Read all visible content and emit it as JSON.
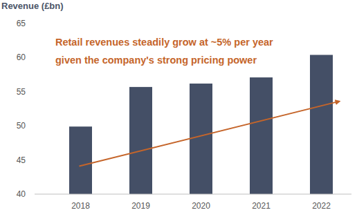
{
  "chart_data": {
    "type": "bar",
    "title": "Revenue (£bn)",
    "categories": [
      "2018",
      "2019",
      "2020",
      "2021",
      "2022"
    ],
    "values": [
      49.9,
      55.7,
      56.2,
      57.1,
      60.4
    ],
    "color": "#444f66",
    "ylim": [
      40,
      65
    ],
    "yticks": [
      40,
      45,
      50,
      55,
      60,
      65
    ],
    "grid": false,
    "annotations": [
      {
        "text": [
          "Retail revenues steadily grow at ~5% per year",
          "given the company's strong pricing power"
        ],
        "color": "#c5652a",
        "arrow": {
          "from": 44.1,
          "to": 53.6
        }
      }
    ]
  }
}
